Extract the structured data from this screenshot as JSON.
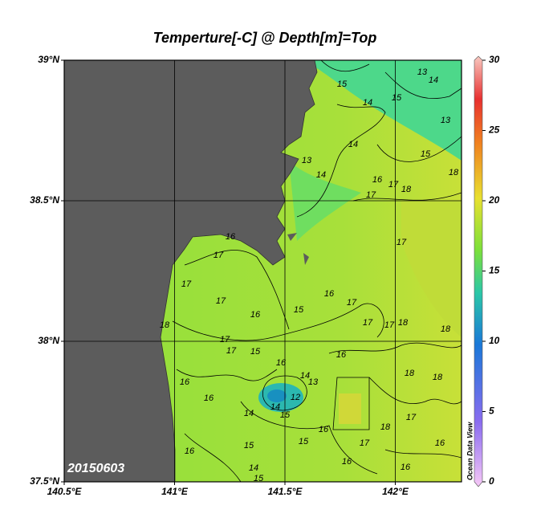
{
  "title": "Temperture[-C] @ Depth[m]=Top",
  "date_label": "20150603",
  "watermark": "Ocean Data View",
  "map": {
    "xlim": [
      140.5,
      142.3
    ],
    "ylim": [
      37.5,
      39
    ],
    "xticks": [
      {
        "value": 140.5,
        "label": "140.5°E"
      },
      {
        "value": 141,
        "label": "141°E"
      },
      {
        "value": 141.5,
        "label": "141.5°E"
      },
      {
        "value": 142,
        "label": "142°E"
      }
    ],
    "yticks": [
      {
        "value": 37.5,
        "label": "37.5°N"
      },
      {
        "value": 38,
        "label": "38°N"
      },
      {
        "value": 38.5,
        "label": "38.5°N"
      },
      {
        "value": 39,
        "label": "39°N"
      }
    ],
    "grid": true
  },
  "colorbar": {
    "lim": [
      0,
      30
    ],
    "ticks": [
      0,
      5,
      10,
      15,
      20,
      25,
      30
    ]
  },
  "contour_labels": [
    15,
    14,
    15,
    13,
    14,
    13,
    15,
    13,
    14,
    14,
    16,
    17,
    17,
    18,
    16,
    17,
    17,
    17,
    16,
    15,
    16,
    17,
    17,
    17,
    18,
    18,
    17,
    18,
    17,
    17,
    15,
    16,
    16,
    14,
    13,
    12,
    14,
    15,
    16,
    16,
    14,
    16,
    15,
    15,
    14,
    15,
    16,
    17,
    18,
    17,
    18,
    18,
    16,
    16,
    16,
    18
  ]
}
